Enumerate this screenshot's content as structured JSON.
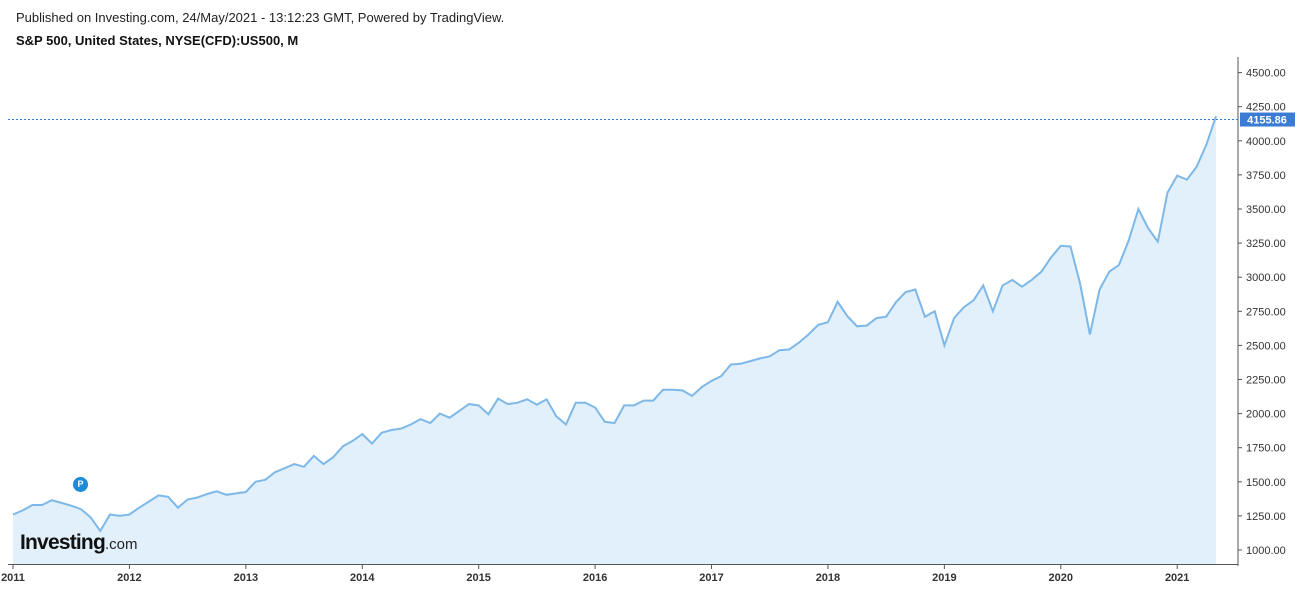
{
  "header": {
    "published": "Published on Investing.com, 24/May/2021 - 13:12:23 GMT, Powered by TradingView.",
    "title": "S&P 500, United States, NYSE(CFD):US500, M"
  },
  "marker": {
    "label": "P"
  },
  "logo": {
    "brand": "Investing",
    "suffix": ".com"
  },
  "colors": {
    "line": "#7db8e8",
    "fill": "#e1f0fa",
    "axis": "#555555",
    "price_badge": "#3a7bd5"
  },
  "chart_data": {
    "type": "area",
    "title": "S&P 500, United States, NYSE(CFD):US500, M",
    "xlabel": "",
    "ylabel": "",
    "y_ticks": [
      "1000.00",
      "1250.00",
      "1500.00",
      "1750.00",
      "2000.00",
      "2250.00",
      "2500.00",
      "2750.00",
      "3000.00",
      "3250.00",
      "3500.00",
      "3750.00",
      "4000.00",
      "4250.00",
      "4500.00"
    ],
    "x_ticks": [
      "2011",
      "2012",
      "2013",
      "2014",
      "2015",
      "2016",
      "2017",
      "2018",
      "2019",
      "2020",
      "2021"
    ],
    "xlim": [
      "2011-01",
      "2021-05"
    ],
    "ylim": [
      930,
      4620
    ],
    "last_price": 4155.86,
    "last_price_label": "4155.86",
    "grid": false,
    "series": [
      {
        "x": [
          "2011-01",
          "2011-02",
          "2011-03",
          "2011-04",
          "2011-05",
          "2011-06",
          "2011-07",
          "2011-08",
          "2011-09",
          "2011-10",
          "2011-11",
          "2011-12",
          "2012-01",
          "2012-02",
          "2012-03",
          "2012-04",
          "2012-05",
          "2012-06",
          "2012-07",
          "2012-08",
          "2012-09",
          "2012-10",
          "2012-11",
          "2012-12",
          "2013-01",
          "2013-02",
          "2013-03",
          "2013-04",
          "2013-05",
          "2013-06",
          "2013-07",
          "2013-08",
          "2013-09",
          "2013-10",
          "2013-11",
          "2013-12",
          "2014-01",
          "2014-02",
          "2014-03",
          "2014-04",
          "2014-05",
          "2014-06",
          "2014-07",
          "2014-08",
          "2014-09",
          "2014-10",
          "2014-11",
          "2014-12",
          "2015-01",
          "2015-02",
          "2015-03",
          "2015-04",
          "2015-05",
          "2015-06",
          "2015-07",
          "2015-08",
          "2015-09",
          "2015-10",
          "2015-11",
          "2015-12",
          "2016-01",
          "2016-02",
          "2016-03",
          "2016-04",
          "2016-05",
          "2016-06",
          "2016-07",
          "2016-08",
          "2016-09",
          "2016-10",
          "2016-11",
          "2016-12",
          "2017-01",
          "2017-02",
          "2017-03",
          "2017-04",
          "2017-05",
          "2017-06",
          "2017-07",
          "2017-08",
          "2017-09",
          "2017-10",
          "2017-11",
          "2017-12",
          "2018-01",
          "2018-02",
          "2018-03",
          "2018-04",
          "2018-05",
          "2018-06",
          "2018-07",
          "2018-08",
          "2018-09",
          "2018-10",
          "2018-11",
          "2018-12",
          "2019-01",
          "2019-02",
          "2019-03",
          "2019-04",
          "2019-05",
          "2019-06",
          "2019-07",
          "2019-08",
          "2019-09",
          "2019-10",
          "2019-11",
          "2019-12",
          "2020-01",
          "2020-02",
          "2020-03",
          "2020-04",
          "2020-05",
          "2020-06",
          "2020-07",
          "2020-08",
          "2020-09",
          "2020-10",
          "2020-11",
          "2020-12",
          "2021-01",
          "2021-02",
          "2021-03",
          "2021-04",
          "2021-05"
        ],
        "values": [
          1260,
          1290,
          1330,
          1330,
          1365,
          1345,
          1325,
          1300,
          1240,
          1140,
          1260,
          1250,
          1260,
          1310,
          1355,
          1400,
          1390,
          1310,
          1370,
          1385,
          1410,
          1430,
          1405,
          1415,
          1425,
          1500,
          1515,
          1570,
          1600,
          1630,
          1610,
          1690,
          1630,
          1680,
          1760,
          1800,
          1850,
          1780,
          1860,
          1880,
          1890,
          1920,
          1960,
          1930,
          2000,
          1970,
          2020,
          2070,
          2060,
          1995,
          2110,
          2070,
          2080,
          2105,
          2065,
          2105,
          1980,
          1920,
          2080,
          2080,
          2045,
          1940,
          1930,
          2060,
          2060,
          2095,
          2095,
          2175,
          2175,
          2170,
          2130,
          2195,
          2240,
          2275,
          2360,
          2365,
          2385,
          2405,
          2420,
          2465,
          2470,
          2520,
          2580,
          2650,
          2670,
          2820,
          2715,
          2640,
          2645,
          2700,
          2710,
          2815,
          2890,
          2910,
          2710,
          2750,
          2500,
          2700,
          2780,
          2830,
          2940,
          2750,
          2940,
          2980,
          2930,
          2980,
          3040,
          3145,
          3230,
          3225,
          2950,
          2580,
          2910,
          3040,
          3090,
          3270,
          3500,
          3360,
          3260,
          3620,
          3745,
          3715,
          3810,
          3970,
          4180
        ]
      }
    ]
  }
}
